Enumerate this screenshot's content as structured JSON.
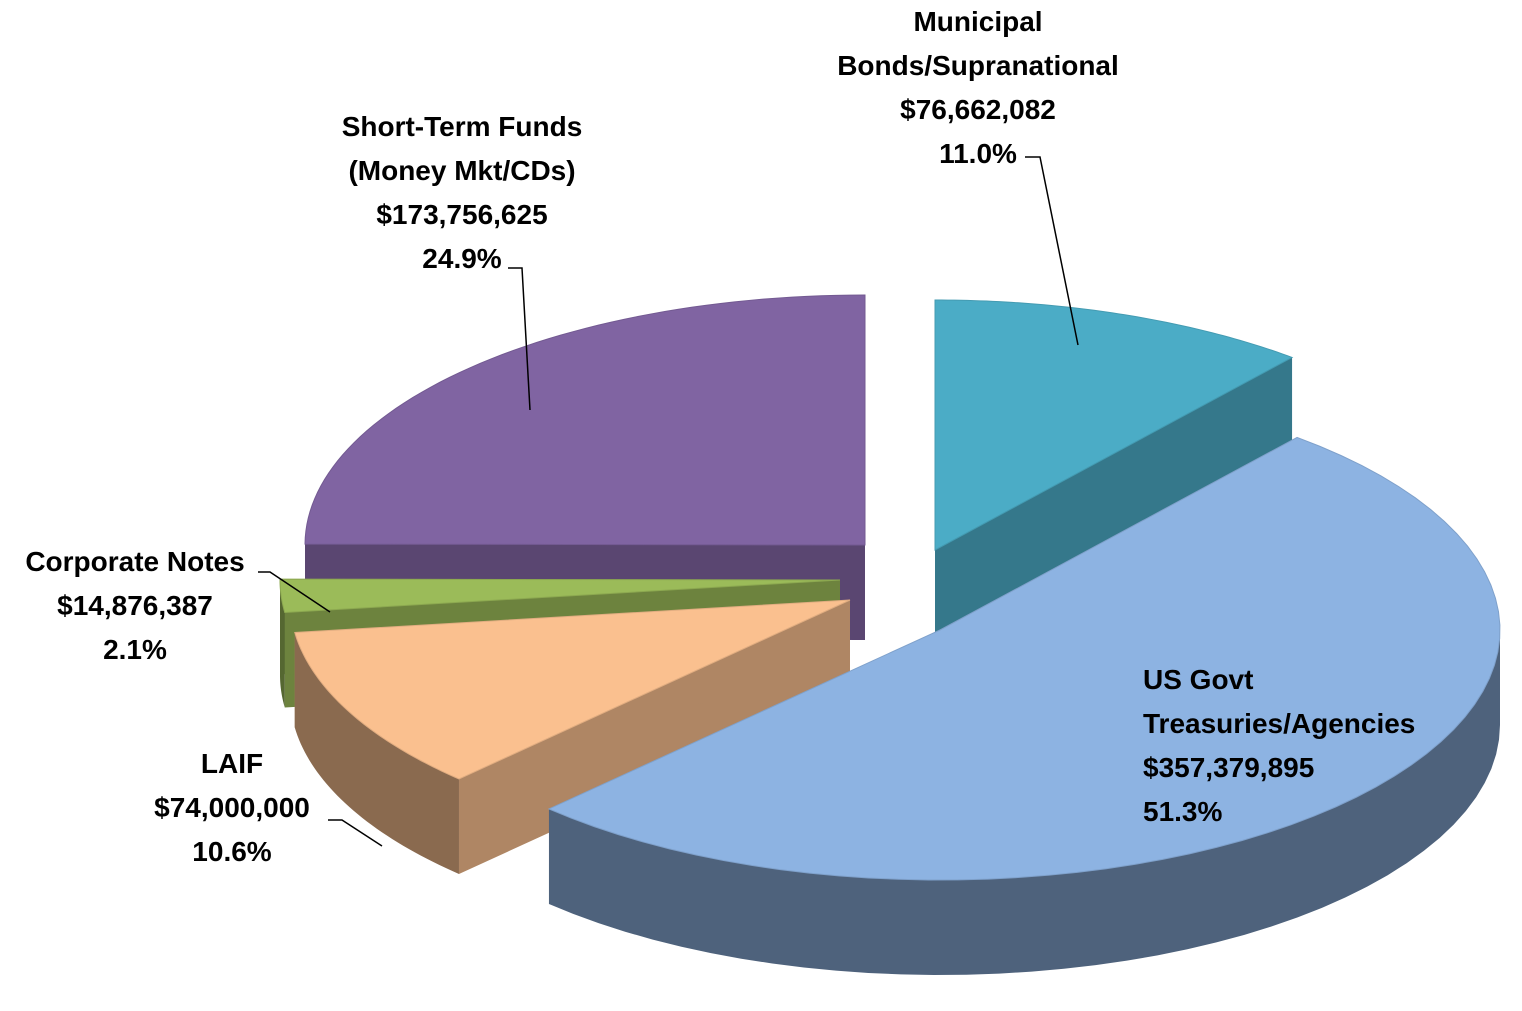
{
  "chart_data": {
    "type": "pie",
    "style": "3d-exploded",
    "categories": [
      "Municipal Bonds/Supranational",
      "US Govt Treasuries/Agencies",
      "LAIF",
      "Corporate Notes",
      "Short-Term Funds (Money Mkt/CDs)"
    ],
    "values": [
      76662082,
      357379895,
      74000000,
      14876387,
      173756625
    ],
    "value_labels": [
      "$76,662,082",
      "$357,379,895",
      "$74,000,000",
      "$14,876,387",
      "$173,756,625"
    ],
    "percents": [
      11.0,
      51.3,
      10.6,
      2.1,
      24.9
    ],
    "percent_labels": [
      "11.0%",
      "51.3%",
      "10.6%",
      "2.1%",
      "24.9%"
    ],
    "colors": [
      "#4bacc6",
      "#8db3e2",
      "#fac08f",
      "#9bbb59",
      "#8064a2"
    ]
  }
}
